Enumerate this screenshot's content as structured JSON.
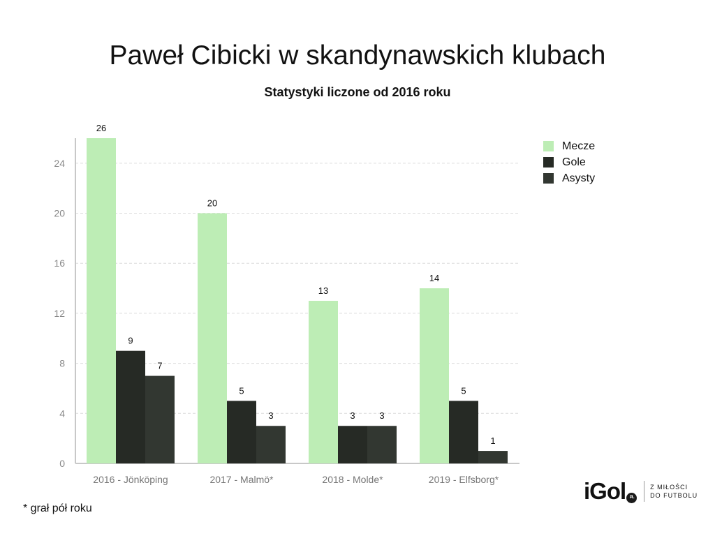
{
  "header": {
    "title": "Paweł Cibicki w skandynawskich klubach",
    "subtitle": "Statystyki liczone od 2016 roku"
  },
  "chart_data": {
    "type": "bar",
    "categories": [
      "2016 - Jönköping",
      "2017 - Malmö*",
      "2018 - Molde*",
      "2019 - Elfsborg*"
    ],
    "series": [
      {
        "name": "Mecze",
        "values": [
          26,
          20,
          13,
          14
        ],
        "color": "#bdedb5"
      },
      {
        "name": "Gole",
        "values": [
          9,
          5,
          3,
          5
        ],
        "color": "#262a25"
      },
      {
        "name": "Asysty",
        "values": [
          7,
          3,
          3,
          1
        ],
        "color": "#323731"
      }
    ],
    "ylim": [
      0,
      26
    ],
    "yticks": [
      0,
      4,
      8,
      12,
      16,
      20,
      24
    ],
    "grid": true,
    "legend_position": "top-right",
    "data_labels": true
  },
  "footnote": "* grał pół roku",
  "brand": {
    "logo": "iGol",
    "badge": "PL",
    "tagline_line1": "Z MIŁOŚCI",
    "tagline_line2": "DO FUTBOLU"
  }
}
